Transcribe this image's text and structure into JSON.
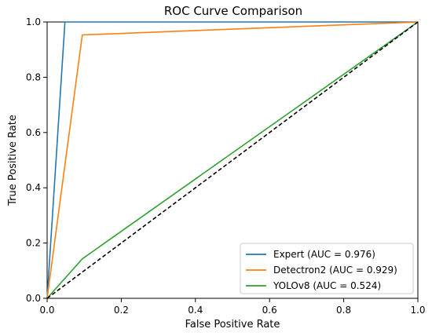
{
  "chart_data": {
    "type": "line",
    "title": "ROC Curve Comparison",
    "xlabel": "False Positive Rate",
    "ylabel": "True Positive Rate",
    "xlim": [
      0,
      1
    ],
    "ylim": [
      0,
      1
    ],
    "xticks": [
      "0.0",
      "0.2",
      "0.4",
      "0.6",
      "0.8",
      "1.0"
    ],
    "yticks": [
      "0.0",
      "0.2",
      "0.4",
      "0.6",
      "0.8",
      "1.0"
    ],
    "grid": false,
    "legend_position": "lower-right",
    "series": [
      {
        "name": "Expert (AUC = 0.976)",
        "color": "#1f77b4",
        "x": [
          0,
          0.048,
          1
        ],
        "y": [
          0,
          1.0,
          1.0
        ]
      },
      {
        "name": "Detectron2 (AUC = 0.929)",
        "color": "#ff7f0e",
        "x": [
          0,
          0.095,
          1
        ],
        "y": [
          0,
          0.953,
          1.0
        ]
      },
      {
        "name": "YOLOv8 (AUC = 0.524)",
        "color": "#2ca02c",
        "x": [
          0,
          0.095,
          1
        ],
        "y": [
          0,
          0.143,
          1.0
        ]
      }
    ],
    "reference_line": {
      "x": [
        0,
        1
      ],
      "y": [
        0,
        1
      ],
      "color": "#000000",
      "style": "dashed"
    }
  }
}
